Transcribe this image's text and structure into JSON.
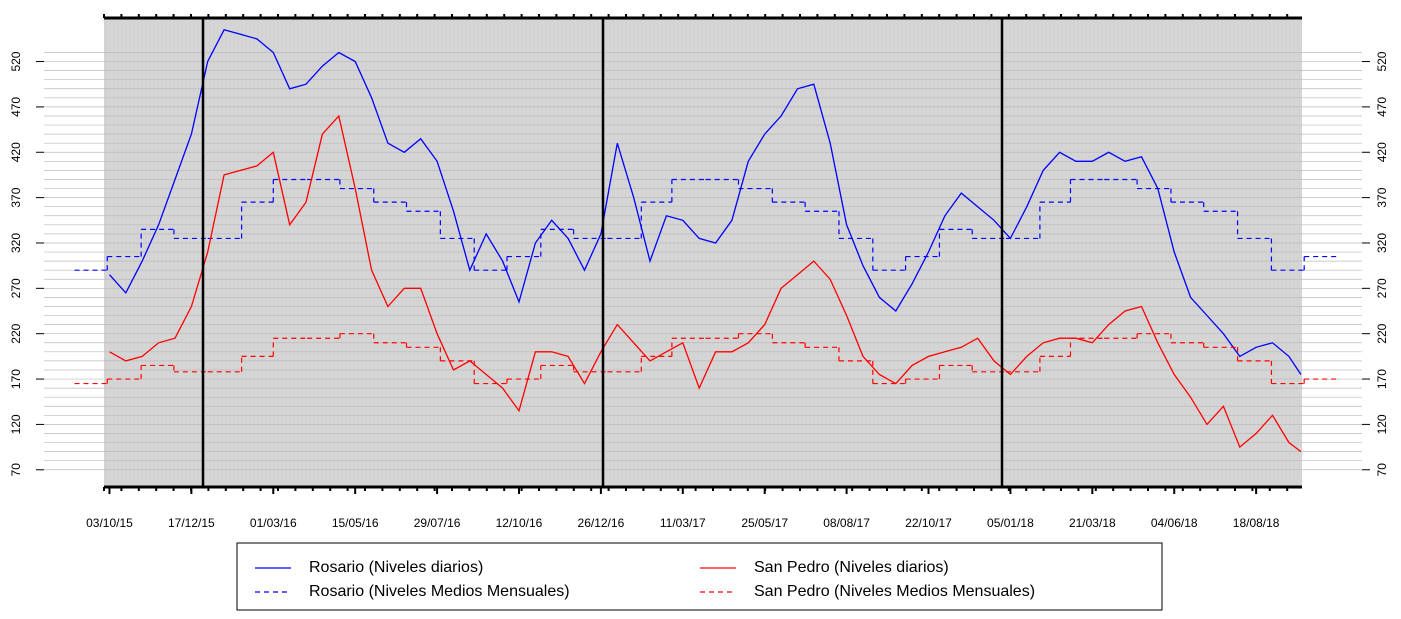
{
  "chart_data": {
    "type": "line",
    "x": [
      "2015-10-03",
      "2015-10-18",
      "2015-11-02",
      "2015-11-17",
      "2015-12-02",
      "2015-12-17",
      "2016-01-01",
      "2016-01-16",
      "2016-01-31",
      "2016-02-15",
      "2016-03-01",
      "2016-03-16",
      "2016-03-31",
      "2016-04-15",
      "2016-04-30",
      "2016-05-15",
      "2016-05-30",
      "2016-06-14",
      "2016-06-29",
      "2016-07-14",
      "2016-07-29",
      "2016-08-13",
      "2016-08-28",
      "2016-09-12",
      "2016-09-27",
      "2016-10-12",
      "2016-10-27",
      "2016-11-11",
      "2016-11-26",
      "2016-12-11",
      "2016-12-26",
      "2017-01-10",
      "2017-01-25",
      "2017-02-09",
      "2017-02-24",
      "2017-03-11",
      "2017-03-26",
      "2017-04-10",
      "2017-04-25",
      "2017-05-10",
      "2017-05-25",
      "2017-06-09",
      "2017-06-24",
      "2017-07-09",
      "2017-07-24",
      "2017-08-08",
      "2017-08-23",
      "2017-09-07",
      "2017-09-22",
      "2017-10-07",
      "2017-10-22",
      "2017-11-06",
      "2017-11-21",
      "2017-12-06",
      "2017-12-21",
      "2018-01-05",
      "2018-01-20",
      "2018-02-04",
      "2018-02-19",
      "2018-03-06",
      "2018-03-21",
      "2018-04-05",
      "2018-04-20",
      "2018-05-05",
      "2018-05-20",
      "2018-06-04",
      "2018-06-19",
      "2018-07-04",
      "2018-07-19",
      "2018-08-03",
      "2018-08-18",
      "2018-09-02",
      "2018-09-17",
      "2018-09-28"
    ],
    "series": [
      {
        "name": "Rosario (Niveles diarios)",
        "color": "#0000ff",
        "dashed": false,
        "values": [
          285,
          265,
          300,
          340,
          390,
          440,
          520,
          555,
          550,
          545,
          530,
          490,
          495,
          515,
          530,
          520,
          480,
          430,
          420,
          435,
          410,
          355,
          290,
          330,
          300,
          255,
          320,
          345,
          325,
          290,
          330,
          430,
          370,
          300,
          350,
          345,
          325,
          320,
          345,
          410,
          440,
          460,
          490,
          495,
          430,
          340,
          295,
          260,
          245,
          275,
          310,
          350,
          375,
          360,
          345,
          325,
          360,
          400,
          420,
          410,
          410,
          420,
          410,
          415,
          380,
          310,
          260,
          240,
          220,
          195,
          205,
          210,
          195,
          175
        ]
      },
      {
        "name": "Rosario (Niveles Medios Mensuales)",
        "color": "#0000ff",
        "dashed": true,
        "step": true,
        "x": [
          "2015-09-01",
          "2015-10-01",
          "2015-11-01",
          "2015-12-01",
          "2016-01-01",
          "2016-02-01",
          "2016-03-01",
          "2016-04-01",
          "2016-05-01",
          "2016-06-01",
          "2016-07-01",
          "2016-08-01",
          "2016-09-01",
          "2016-10-01",
          "2016-11-01",
          "2016-12-01",
          "2017-01-01",
          "2017-02-01",
          "2017-03-01",
          "2017-04-01",
          "2017-05-01",
          "2017-06-01",
          "2017-07-01",
          "2017-08-01",
          "2017-09-01",
          "2017-10-01",
          "2017-11-01",
          "2017-12-01",
          "2018-01-01",
          "2018-02-01",
          "2018-03-01",
          "2018-04-01",
          "2018-05-01",
          "2018-06-01",
          "2018-07-01",
          "2018-08-01",
          "2018-09-01",
          "2018-10-01"
        ],
        "values": [
          290,
          305,
          335,
          325,
          325,
          365,
          390,
          390,
          380,
          365,
          355,
          325,
          290,
          305,
          335,
          325,
          325,
          365,
          390,
          390,
          380,
          365,
          355,
          325,
          290,
          305,
          335,
          325,
          325,
          365,
          390,
          390,
          380,
          365,
          355,
          325,
          290,
          305
        ]
      },
      {
        "name": "San Pedro (Niveles diarios)",
        "color": "#ff0000",
        "dashed": false,
        "values": [
          200,
          190,
          195,
          210,
          215,
          250,
          310,
          395,
          400,
          405,
          420,
          340,
          365,
          440,
          460,
          380,
          290,
          250,
          270,
          270,
          220,
          180,
          190,
          175,
          160,
          135,
          200,
          200,
          195,
          165,
          200,
          230,
          210,
          190,
          200,
          210,
          160,
          200,
          200,
          210,
          230,
          270,
          285,
          300,
          280,
          240,
          195,
          175,
          165,
          185,
          195,
          200,
          205,
          215,
          190,
          175,
          195,
          210,
          215,
          215,
          210,
          230,
          245,
          250,
          210,
          175,
          150,
          120,
          140,
          95,
          110,
          130,
          100,
          90
        ]
      },
      {
        "name": "San Pedro (Niveles Medios Mensuales)",
        "color": "#ff0000",
        "dashed": true,
        "step": true,
        "x": [
          "2015-09-01",
          "2015-10-01",
          "2015-11-01",
          "2015-12-01",
          "2016-01-01",
          "2016-02-01",
          "2016-03-01",
          "2016-04-01",
          "2016-05-01",
          "2016-06-01",
          "2016-07-01",
          "2016-08-01",
          "2016-09-01",
          "2016-10-01",
          "2016-11-01",
          "2016-12-01",
          "2017-01-01",
          "2017-02-01",
          "2017-03-01",
          "2017-04-01",
          "2017-05-01",
          "2017-06-01",
          "2017-07-01",
          "2017-08-01",
          "2017-09-01",
          "2017-10-01",
          "2017-11-01",
          "2017-12-01",
          "2018-01-01",
          "2018-02-01",
          "2018-03-01",
          "2018-04-01",
          "2018-05-01",
          "2018-06-01",
          "2018-07-01",
          "2018-08-01",
          "2018-09-01",
          "2018-10-01"
        ],
        "values": [
          165,
          170,
          185,
          178,
          178,
          195,
          215,
          215,
          220,
          210,
          205,
          190,
          165,
          170,
          185,
          178,
          178,
          195,
          215,
          215,
          220,
          210,
          205,
          190,
          165,
          170,
          185,
          178,
          178,
          195,
          215,
          215,
          220,
          210,
          205,
          190,
          165,
          170
        ]
      }
    ],
    "xlim": [
      "2015-09-28",
      "2018-09-29"
    ],
    "xticks": [
      {
        "value": "2015-10-03",
        "label": "03/10/15"
      },
      {
        "value": "2015-12-17",
        "label": "17/12/15"
      },
      {
        "value": "2016-03-01",
        "label": "01/03/16"
      },
      {
        "value": "2016-05-15",
        "label": "15/05/16"
      },
      {
        "value": "2016-07-29",
        "label": "29/07/16"
      },
      {
        "value": "2016-10-12",
        "label": "12/10/16"
      },
      {
        "value": "2016-12-26",
        "label": "26/12/16"
      },
      {
        "value": "2017-03-11",
        "label": "11/03/17"
      },
      {
        "value": "2017-05-25",
        "label": "25/05/17"
      },
      {
        "value": "2017-08-08",
        "label": "08/08/17"
      },
      {
        "value": "2017-10-22",
        "label": "22/10/17"
      },
      {
        "value": "2018-01-05",
        "label": "05/01/18"
      },
      {
        "value": "2018-03-21",
        "label": "21/03/18"
      },
      {
        "value": "2018-06-04",
        "label": "04/06/18"
      },
      {
        "value": "2018-08-18",
        "label": "18/08/18"
      }
    ],
    "ylim": [
      51,
      568
    ],
    "yticks": [
      70,
      120,
      170,
      220,
      270,
      320,
      370,
      420,
      470,
      520
    ],
    "yminorticks": [
      70,
      80,
      90,
      100,
      110,
      120,
      130,
      140,
      150,
      160,
      170,
      180,
      190,
      200,
      210,
      220,
      230,
      240,
      250,
      260,
      270,
      280,
      290,
      300,
      310,
      320,
      330,
      340,
      350,
      360,
      370,
      380,
      390,
      400,
      410,
      420,
      430,
      440,
      450,
      460,
      470,
      480,
      490,
      500,
      510,
      520,
      530
    ],
    "grid": true
  }
}
